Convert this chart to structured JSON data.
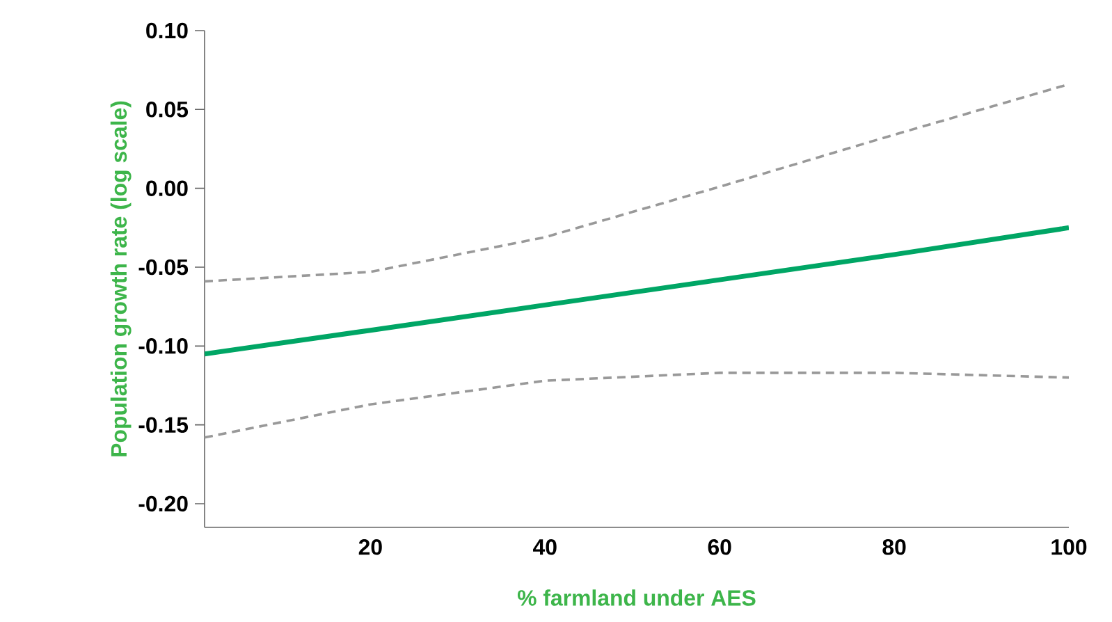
{
  "chart_data": {
    "type": "line",
    "xlabel": "% farmland under AES",
    "ylabel": "Population growth rate (log scale)",
    "x": [
      1,
      20,
      40,
      60,
      80,
      100
    ],
    "series": [
      {
        "color": "#00a665",
        "line_style": "solid",
        "values": [
          -0.105,
          -0.09,
          -0.074,
          -0.058,
          -0.042,
          -0.025
        ]
      },
      {
        "color": "#999999",
        "line_style": "dashed",
        "values": [
          -0.059,
          -0.053,
          -0.031,
          0.001,
          0.034,
          0.066
        ]
      },
      {
        "color": "#999999",
        "line_style": "dashed",
        "values": [
          -0.158,
          -0.137,
          -0.122,
          -0.117,
          -0.117,
          -0.12
        ]
      }
    ],
    "xlim": [
      1,
      100
    ],
    "ylim": [
      -0.215,
      0.1
    ],
    "xticks": [
      20,
      40,
      60,
      80,
      100
    ],
    "yticks": [
      {
        "value": 0.1,
        "label": "0.10"
      },
      {
        "value": 0.05,
        "label": "0.05"
      },
      {
        "value": 0.0,
        "label": "0.00"
      },
      {
        "value": -0.05,
        "label": "-0.05"
      },
      {
        "value": -0.1,
        "label": "-0.10"
      },
      {
        "value": -0.15,
        "label": "-0.15"
      },
      {
        "value": -0.2,
        "label": "-0.20"
      }
    ],
    "grid": false,
    "marker": "none"
  }
}
